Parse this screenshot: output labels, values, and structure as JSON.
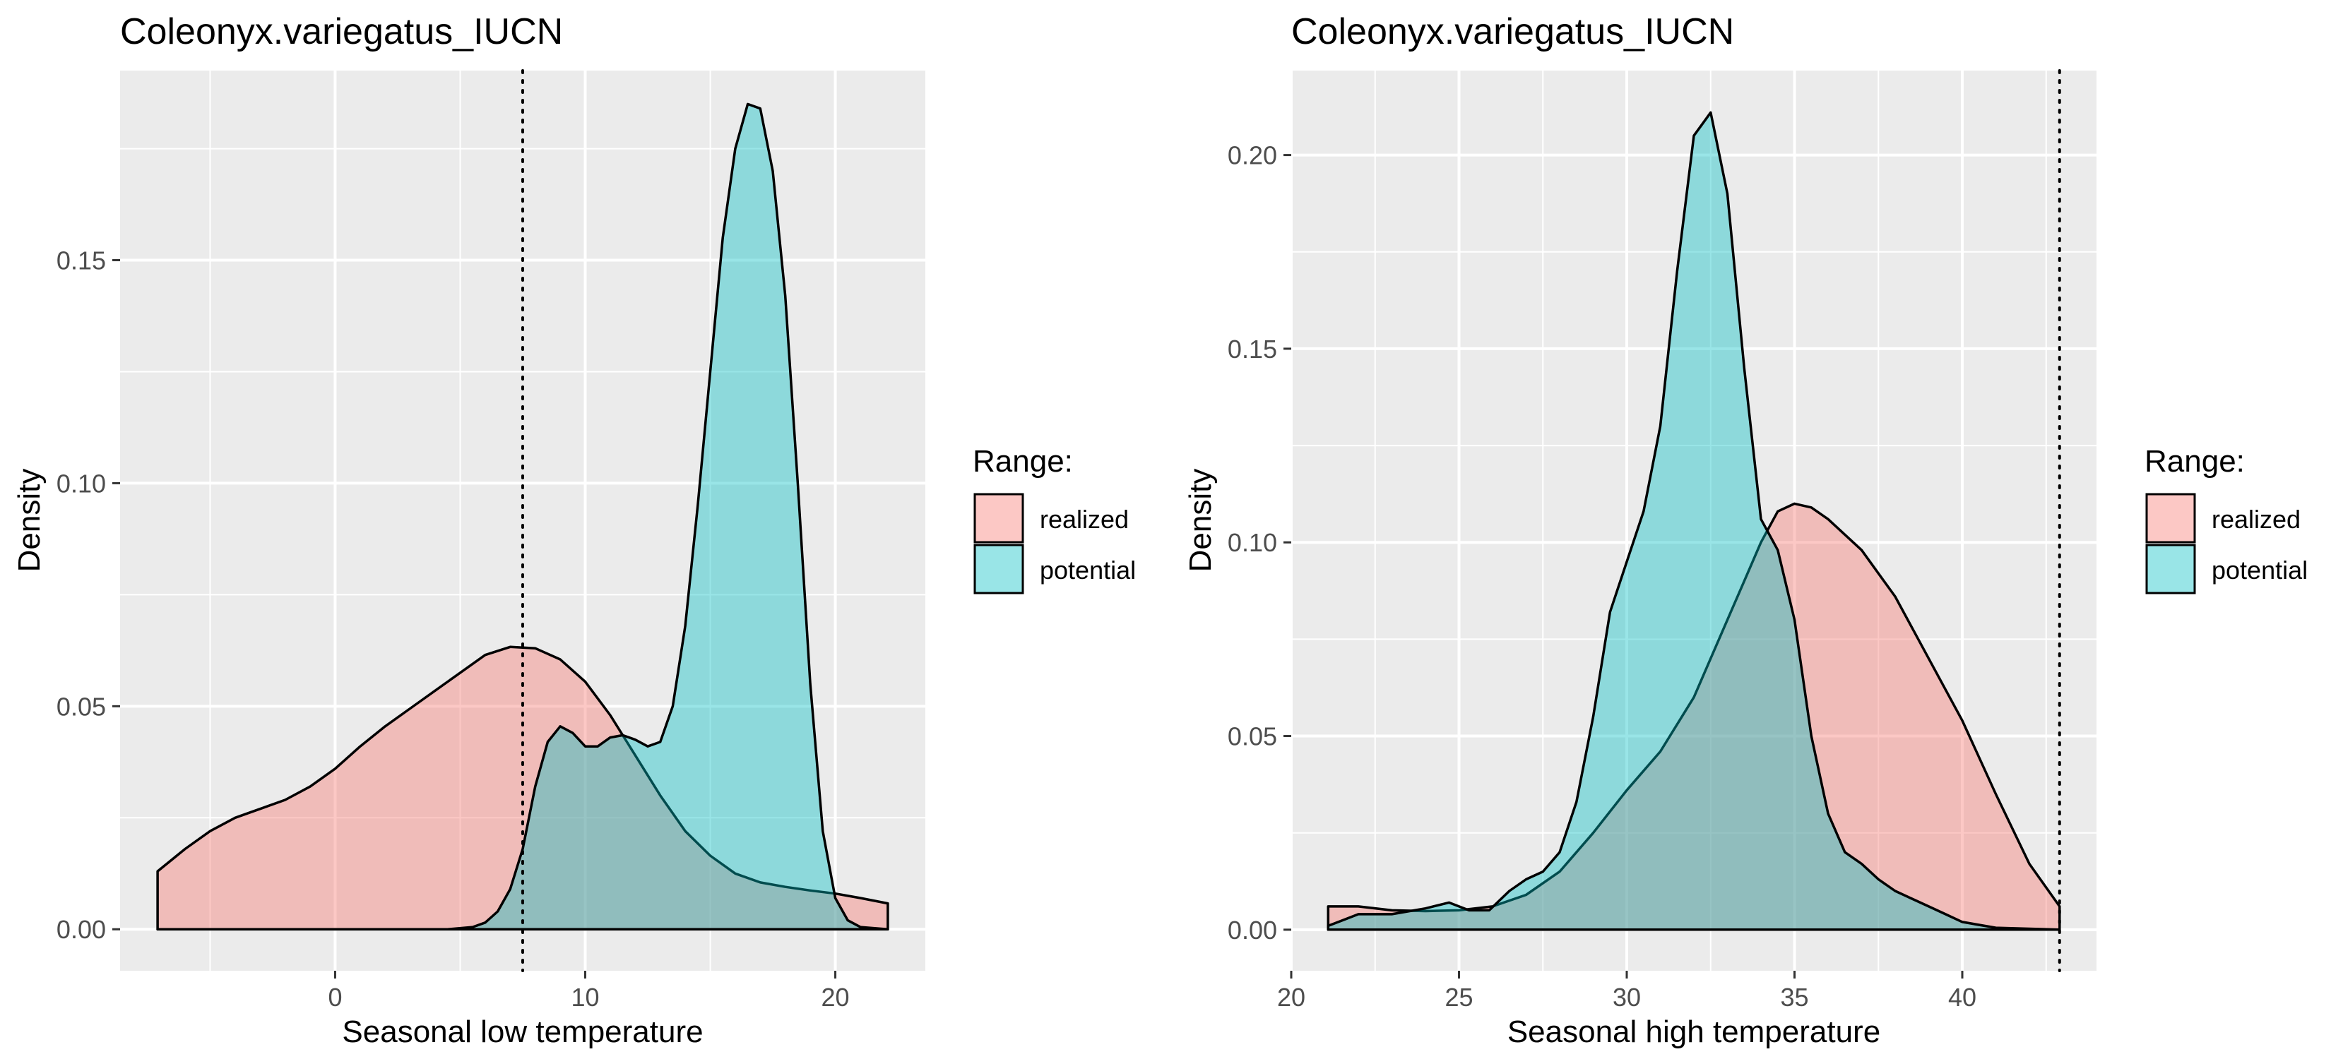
{
  "legend": {
    "title": "Range:",
    "items": [
      {
        "label": "realized",
        "color": "#F8766D"
      },
      {
        "label": "potential",
        "color": "#00BFC4"
      }
    ]
  },
  "chart_data": [
    {
      "type": "area",
      "title": "Coleonyx.variegatus_IUCN",
      "xlabel": "Seasonal low temperature",
      "ylabel": "Density",
      "xlim": [
        -8.6,
        23.6
      ],
      "ylim": [
        -0.0093,
        0.1925
      ],
      "x_ticks": [
        0,
        10,
        20
      ],
      "x_tick_labels": [
        "0",
        "10",
        "20"
      ],
      "y_ticks": [
        0.0,
        0.05,
        0.1,
        0.15
      ],
      "y_tick_labels": [
        "0.00",
        "0.05",
        "0.10",
        "0.15"
      ],
      "grid": true,
      "legend_position": "right",
      "vline": 7.5,
      "series": [
        {
          "name": "realized",
          "color": "#F8766D",
          "x": [
            -7.1,
            -6.0,
            -5.0,
            -4.0,
            -3.0,
            -2.0,
            -1.0,
            0.0,
            1.0,
            2.0,
            3.0,
            4.0,
            5.0,
            6.0,
            7.0,
            8.0,
            9.0,
            10.0,
            11.0,
            12.0,
            13.0,
            14.0,
            15.0,
            16.0,
            17.0,
            18.0,
            19.0,
            20.0,
            21.0,
            22.1
          ],
          "y": [
            0.013,
            0.018,
            0.022,
            0.025,
            0.027,
            0.029,
            0.032,
            0.036,
            0.041,
            0.0455,
            0.0495,
            0.0535,
            0.0575,
            0.0615,
            0.0633,
            0.063,
            0.0605,
            0.0555,
            0.048,
            0.039,
            0.03,
            0.022,
            0.0165,
            0.0125,
            0.0105,
            0.0095,
            0.0087,
            0.008,
            0.007,
            0.0058
          ]
        },
        {
          "name": "potential",
          "color": "#00BFC4",
          "x": [
            -7.1,
            4.5,
            5.5,
            6.0,
            6.5,
            7.0,
            7.5,
            8.0,
            8.5,
            9.0,
            9.5,
            10.0,
            10.5,
            11.0,
            11.5,
            12.0,
            12.5,
            13.0,
            13.5,
            14.0,
            14.5,
            15.0,
            15.5,
            16.0,
            16.5,
            17.0,
            17.5,
            18.0,
            18.5,
            19.0,
            19.5,
            20.0,
            20.5,
            21.0,
            22.1
          ],
          "y": [
            0.0,
            0.0,
            0.0005,
            0.0015,
            0.004,
            0.009,
            0.018,
            0.032,
            0.042,
            0.0455,
            0.044,
            0.041,
            0.041,
            0.043,
            0.0435,
            0.0425,
            0.041,
            0.042,
            0.05,
            0.068,
            0.095,
            0.125,
            0.155,
            0.175,
            0.185,
            0.184,
            0.17,
            0.142,
            0.1,
            0.055,
            0.022,
            0.007,
            0.002,
            0.0005,
            0.0
          ]
        }
      ]
    },
    {
      "type": "area",
      "title": "Coleonyx.variegatus_IUCN",
      "xlabel": "Seasonal high temperature",
      "ylabel": "Density",
      "xlim": [
        20.0,
        44.0
      ],
      "ylim": [
        -0.0106,
        0.2218
      ],
      "x_ticks": [
        20,
        25,
        30,
        35,
        40
      ],
      "x_tick_labels": [
        "20",
        "25",
        "30",
        "35",
        "40"
      ],
      "y_ticks": [
        0.0,
        0.05,
        0.1,
        0.15,
        0.2
      ],
      "y_tick_labels": [
        "0.00",
        "0.05",
        "0.10",
        "0.15",
        "0.20"
      ],
      "grid": true,
      "legend_position": "right",
      "vline": 42.9,
      "series": [
        {
          "name": "realized",
          "color": "#F8766D",
          "x": [
            21.1,
            22.0,
            23.0,
            24.0,
            25.0,
            26.0,
            27.0,
            28.0,
            29.0,
            30.0,
            31.0,
            32.0,
            33.0,
            33.5,
            34.0,
            34.5,
            35.0,
            35.5,
            36.0,
            37.0,
            38.0,
            39.0,
            40.0,
            41.0,
            42.0,
            42.9
          ],
          "y": [
            0.006,
            0.006,
            0.005,
            0.0048,
            0.005,
            0.006,
            0.009,
            0.015,
            0.025,
            0.036,
            0.046,
            0.06,
            0.08,
            0.09,
            0.1,
            0.108,
            0.11,
            0.109,
            0.106,
            0.098,
            0.086,
            0.07,
            0.054,
            0.035,
            0.017,
            0.006
          ]
        },
        {
          "name": "potential",
          "color": "#00BFC4",
          "x": [
            21.1,
            22.0,
            23.0,
            24.0,
            24.7,
            25.3,
            25.9,
            26.5,
            27.0,
            27.5,
            28.0,
            28.5,
            29.0,
            29.5,
            30.0,
            30.5,
            31.0,
            31.5,
            32.0,
            32.5,
            33.0,
            33.5,
            34.0,
            34.5,
            35.0,
            35.5,
            36.0,
            36.5,
            37.0,
            37.5,
            38.0,
            38.5,
            39.0,
            39.5,
            40.0,
            41.0,
            42.9
          ],
          "y": [
            0.001,
            0.004,
            0.004,
            0.0055,
            0.007,
            0.005,
            0.005,
            0.01,
            0.013,
            0.015,
            0.02,
            0.033,
            0.055,
            0.082,
            0.095,
            0.108,
            0.13,
            0.17,
            0.205,
            0.211,
            0.19,
            0.145,
            0.106,
            0.098,
            0.08,
            0.05,
            0.03,
            0.02,
            0.017,
            0.013,
            0.01,
            0.008,
            0.006,
            0.004,
            0.002,
            0.0005,
            0.0
          ]
        }
      ]
    }
  ]
}
